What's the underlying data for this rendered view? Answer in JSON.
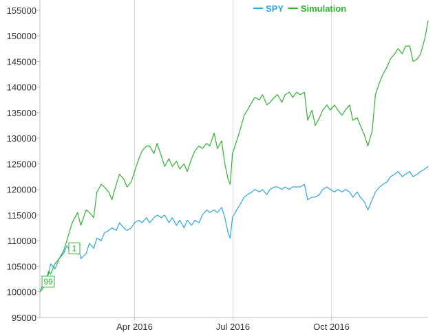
{
  "chart_data": {
    "type": "line",
    "ylim": [
      95000,
      157000
    ],
    "xlim": [
      "2016-01-04",
      "2016-12-30"
    ],
    "grid": {
      "vertical": true,
      "horizontal": false
    },
    "legend_placement": "top-right",
    "y_ticks": [
      "95000",
      "100000",
      "105000",
      "110000",
      "115000",
      "120000",
      "125000",
      "130000",
      "135000",
      "140000",
      "145000",
      "150000",
      "155000"
    ],
    "x_ticks": [
      {
        "date": "2016-04-01",
        "label": "Apr 2016"
      },
      {
        "date": "2016-07-01",
        "label": "Jul 2016"
      },
      {
        "date": "2016-10-01",
        "label": "Oct 2016"
      }
    ],
    "series": [
      {
        "name": "SPY",
        "color": "#29a7e1",
        "points": [
          [
            "2016-01-04",
            100000
          ],
          [
            "2016-01-08",
            102000
          ],
          [
            "2016-01-12",
            103500
          ],
          [
            "2016-01-14",
            105500
          ],
          [
            "2016-01-18",
            104500
          ],
          [
            "2016-01-22",
            106500
          ],
          [
            "2016-01-26",
            107500
          ],
          [
            "2016-01-29",
            109000
          ],
          [
            "2016-02-03",
            107500
          ],
          [
            "2016-02-08",
            109500
          ],
          [
            "2016-02-11",
            106500
          ],
          [
            "2016-02-16",
            107500
          ],
          [
            "2016-02-19",
            109500
          ],
          [
            "2016-02-23",
            108500
          ],
          [
            "2016-02-26",
            110500
          ],
          [
            "2016-03-01",
            110000
          ],
          [
            "2016-03-04",
            111500
          ],
          [
            "2016-03-08",
            112000
          ],
          [
            "2016-03-11",
            112500
          ],
          [
            "2016-03-15",
            112000
          ],
          [
            "2016-03-18",
            113500
          ],
          [
            "2016-03-22",
            112500
          ],
          [
            "2016-03-25",
            112000
          ],
          [
            "2016-03-29",
            112500
          ],
          [
            "2016-04-01",
            113500
          ],
          [
            "2016-04-05",
            114000
          ],
          [
            "2016-04-08",
            113500
          ],
          [
            "2016-04-12",
            114500
          ],
          [
            "2016-04-15",
            113500
          ],
          [
            "2016-04-19",
            114500
          ],
          [
            "2016-04-22",
            115000
          ],
          [
            "2016-04-26",
            114500
          ],
          [
            "2016-04-29",
            115000
          ],
          [
            "2016-05-03",
            113500
          ],
          [
            "2016-05-06",
            114500
          ],
          [
            "2016-05-10",
            113000
          ],
          [
            "2016-05-13",
            114000
          ],
          [
            "2016-05-17",
            112500
          ],
          [
            "2016-05-20",
            114000
          ],
          [
            "2016-05-24",
            113000
          ],
          [
            "2016-05-27",
            114000
          ],
          [
            "2016-05-31",
            113500
          ],
          [
            "2016-06-03",
            115000
          ],
          [
            "2016-06-07",
            116000
          ],
          [
            "2016-06-10",
            115500
          ],
          [
            "2016-06-14",
            116000
          ],
          [
            "2016-06-17",
            115500
          ],
          [
            "2016-06-21",
            116500
          ],
          [
            "2016-06-24",
            114500
          ],
          [
            "2016-06-27",
            111500
          ],
          [
            "2016-06-29",
            110500
          ],
          [
            "2016-07-01",
            114500
          ],
          [
            "2016-07-05",
            116000
          ],
          [
            "2016-07-08",
            117000
          ],
          [
            "2016-07-12",
            118500
          ],
          [
            "2016-07-15",
            119000
          ],
          [
            "2016-07-19",
            119500
          ],
          [
            "2016-07-22",
            120000
          ],
          [
            "2016-07-26",
            119500
          ],
          [
            "2016-07-29",
            120000
          ],
          [
            "2016-08-02",
            119000
          ],
          [
            "2016-08-05",
            120000
          ],
          [
            "2016-08-09",
            120500
          ],
          [
            "2016-08-12",
            120500
          ],
          [
            "2016-08-16",
            120000
          ],
          [
            "2016-08-19",
            120500
          ],
          [
            "2016-08-23",
            120000
          ],
          [
            "2016-08-26",
            120500
          ],
          [
            "2016-08-30",
            120500
          ],
          [
            "2016-09-02",
            120500
          ],
          [
            "2016-09-06",
            121000
          ],
          [
            "2016-09-09",
            118000
          ],
          [
            "2016-09-13",
            118500
          ],
          [
            "2016-09-16",
            118500
          ],
          [
            "2016-09-20",
            119000
          ],
          [
            "2016-09-23",
            120000
          ],
          [
            "2016-09-27",
            120500
          ],
          [
            "2016-09-30",
            120000
          ],
          [
            "2016-10-04",
            119500
          ],
          [
            "2016-10-07",
            120000
          ],
          [
            "2016-10-11",
            119500
          ],
          [
            "2016-10-14",
            120000
          ],
          [
            "2016-10-18",
            119500
          ],
          [
            "2016-10-21",
            118500
          ],
          [
            "2016-10-25",
            119500
          ],
          [
            "2016-10-28",
            118500
          ],
          [
            "2016-11-01",
            117500
          ],
          [
            "2016-11-04",
            116000
          ],
          [
            "2016-11-08",
            118000
          ],
          [
            "2016-11-11",
            119500
          ],
          [
            "2016-11-15",
            120500
          ],
          [
            "2016-11-18",
            121000
          ],
          [
            "2016-11-22",
            121500
          ],
          [
            "2016-11-25",
            122500
          ],
          [
            "2016-11-29",
            123000
          ],
          [
            "2016-12-02",
            123500
          ],
          [
            "2016-12-06",
            122500
          ],
          [
            "2016-12-09",
            123000
          ],
          [
            "2016-12-13",
            123500
          ],
          [
            "2016-12-16",
            122500
          ],
          [
            "2016-12-20",
            123000
          ],
          [
            "2016-12-23",
            123500
          ],
          [
            "2016-12-27",
            124000
          ],
          [
            "2016-12-30",
            124500
          ]
        ]
      },
      {
        "name": "Simulation",
        "color": "#2db32d",
        "points": [
          [
            "2016-01-04",
            100000
          ],
          [
            "2016-01-08",
            101000
          ],
          [
            "2016-01-12",
            104000
          ],
          [
            "2016-01-14",
            103500
          ],
          [
            "2016-01-18",
            105500
          ],
          [
            "2016-01-22",
            106500
          ],
          [
            "2016-01-26",
            108000
          ],
          [
            "2016-01-29",
            110000
          ],
          [
            "2016-02-03",
            113500
          ],
          [
            "2016-02-08",
            115500
          ],
          [
            "2016-02-11",
            113000
          ],
          [
            "2016-02-16",
            116000
          ],
          [
            "2016-02-19",
            115500
          ],
          [
            "2016-02-23",
            114500
          ],
          [
            "2016-02-26",
            119500
          ],
          [
            "2016-03-01",
            121000
          ],
          [
            "2016-03-04",
            120500
          ],
          [
            "2016-03-08",
            119500
          ],
          [
            "2016-03-11",
            118000
          ],
          [
            "2016-03-15",
            121000
          ],
          [
            "2016-03-18",
            123000
          ],
          [
            "2016-03-22",
            122000
          ],
          [
            "2016-03-25",
            120500
          ],
          [
            "2016-03-29",
            121500
          ],
          [
            "2016-04-01",
            123500
          ],
          [
            "2016-04-05",
            126000
          ],
          [
            "2016-04-08",
            127500
          ],
          [
            "2016-04-12",
            128500
          ],
          [
            "2016-04-15",
            128500
          ],
          [
            "2016-04-19",
            127000
          ],
          [
            "2016-04-22",
            129000
          ],
          [
            "2016-04-26",
            126500
          ],
          [
            "2016-04-29",
            124500
          ],
          [
            "2016-05-03",
            126000
          ],
          [
            "2016-05-06",
            124500
          ],
          [
            "2016-05-10",
            125500
          ],
          [
            "2016-05-13",
            124000
          ],
          [
            "2016-05-17",
            125000
          ],
          [
            "2016-05-20",
            123500
          ],
          [
            "2016-05-24",
            126000
          ],
          [
            "2016-05-27",
            127500
          ],
          [
            "2016-05-31",
            128500
          ],
          [
            "2016-06-03",
            128000
          ],
          [
            "2016-06-07",
            129000
          ],
          [
            "2016-06-10",
            128500
          ],
          [
            "2016-06-14",
            131000
          ],
          [
            "2016-06-17",
            128000
          ],
          [
            "2016-06-21",
            129500
          ],
          [
            "2016-06-24",
            125000
          ],
          [
            "2016-06-27",
            122000
          ],
          [
            "2016-06-29",
            121000
          ],
          [
            "2016-07-01",
            127000
          ],
          [
            "2016-07-05",
            129500
          ],
          [
            "2016-07-08",
            131500
          ],
          [
            "2016-07-12",
            134500
          ],
          [
            "2016-07-15",
            135500
          ],
          [
            "2016-07-19",
            137000
          ],
          [
            "2016-07-22",
            138000
          ],
          [
            "2016-07-26",
            137500
          ],
          [
            "2016-07-29",
            138500
          ],
          [
            "2016-08-02",
            136500
          ],
          [
            "2016-08-05",
            137000
          ],
          [
            "2016-08-09",
            138000
          ],
          [
            "2016-08-12",
            138500
          ],
          [
            "2016-08-16",
            137000
          ],
          [
            "2016-08-19",
            138500
          ],
          [
            "2016-08-23",
            139000
          ],
          [
            "2016-08-26",
            138000
          ],
          [
            "2016-08-30",
            139000
          ],
          [
            "2016-09-02",
            138500
          ],
          [
            "2016-09-06",
            139000
          ],
          [
            "2016-09-09",
            133500
          ],
          [
            "2016-09-13",
            135500
          ],
          [
            "2016-09-16",
            132500
          ],
          [
            "2016-09-20",
            134000
          ],
          [
            "2016-09-23",
            135500
          ],
          [
            "2016-09-27",
            136500
          ],
          [
            "2016-09-30",
            135500
          ],
          [
            "2016-10-04",
            136500
          ],
          [
            "2016-10-07",
            135500
          ],
          [
            "2016-10-11",
            134500
          ],
          [
            "2016-10-14",
            135500
          ],
          [
            "2016-10-18",
            136500
          ],
          [
            "2016-10-21",
            133500
          ],
          [
            "2016-10-25",
            134000
          ],
          [
            "2016-10-28",
            132500
          ],
          [
            "2016-11-01",
            130500
          ],
          [
            "2016-11-04",
            128500
          ],
          [
            "2016-11-08",
            131500
          ],
          [
            "2016-11-11",
            138500
          ],
          [
            "2016-11-15",
            141000
          ],
          [
            "2016-11-18",
            142500
          ],
          [
            "2016-11-22",
            144000
          ],
          [
            "2016-11-25",
            145500
          ],
          [
            "2016-11-29",
            146500
          ],
          [
            "2016-12-02",
            147500
          ],
          [
            "2016-12-06",
            146500
          ],
          [
            "2016-12-09",
            148000
          ],
          [
            "2016-12-13",
            148000
          ],
          [
            "2016-12-16",
            145000
          ],
          [
            "2016-12-20",
            145500
          ],
          [
            "2016-12-23",
            146500
          ],
          [
            "2016-12-27",
            149500
          ],
          [
            "2016-12-30",
            153000
          ]
        ]
      }
    ],
    "markers": [
      {
        "label": "99",
        "date": "2016-01-04",
        "value": 102000
      },
      {
        "label": "1",
        "date": "2016-02-05",
        "value": 108500
      }
    ]
  }
}
